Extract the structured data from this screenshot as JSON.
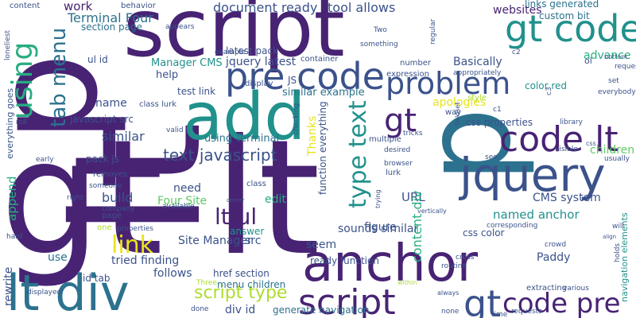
{
  "word_cloud": {
    "background": "#ffffff",
    "palette": {
      "dark_purple": "#482374",
      "indigo": "#3b528b",
      "blue": "#2c728e",
      "teal": "#21918c",
      "green": "#27ad81",
      "light_green": "#5ec962",
      "lime": "#addc30",
      "yellow": "#e8e418"
    },
    "words": [
      {
        "text": "gt lt",
        "color": "#482374"
      },
      {
        "text": "lt",
        "color": "#482374"
      },
      {
        "text": "script",
        "color": "#482374"
      },
      {
        "text": "p",
        "color": "#482374"
      },
      {
        "text": "p",
        "color": "#2c728e"
      },
      {
        "text": "add",
        "color": "#21918c"
      },
      {
        "text": "jquery",
        "color": "#3b528b"
      },
      {
        "text": "anchor",
        "color": "#482374"
      },
      {
        "text": "lt div",
        "color": "#2c728e"
      },
      {
        "text": "gt code",
        "color": "#21918c"
      },
      {
        "text": "pre code",
        "color": "#3b528b"
      },
      {
        "text": "code lt",
        "color": "#482374"
      },
      {
        "text": "problem",
        "color": "#3b528b"
      },
      {
        "text": "code pre",
        "color": "#482374"
      },
      {
        "text": "gt",
        "color": "#482374"
      },
      {
        "text": "script",
        "color": "#482374"
      },
      {
        "text": "gt",
        "color": "#3b528b"
      },
      {
        "text": "using",
        "color": "#27ad81"
      },
      {
        "text": "tab menu",
        "color": "#2c728e"
      },
      {
        "text": "type text",
        "color": "#21918c"
      },
      {
        "text": "lt ul",
        "color": "#482374"
      },
      {
        "text": "link",
        "color": "#e8e418"
      },
      {
        "text": "script type",
        "color": "#addc30"
      },
      {
        "text": "text javascript",
        "color": "#3b528b"
      },
      {
        "text": "document ready",
        "color": "#3b528b"
      },
      {
        "text": "tool allows",
        "color": "#3b528b"
      },
      {
        "text": "work",
        "color": "#482374"
      },
      {
        "text": "Terminal Four",
        "color": "#2c728e"
      },
      {
        "text": "websites",
        "color": "#482374"
      },
      {
        "text": "links generated",
        "color": "#2c728e"
      },
      {
        "text": "custom bit",
        "color": "#2c728e"
      },
      {
        "text": "latest pack",
        "color": "#3b528b"
      },
      {
        "text": "jquery latest",
        "color": "#3b528b"
      },
      {
        "text": "section page",
        "color": "#2c728e"
      },
      {
        "text": "ul id",
        "color": "#3b528b"
      },
      {
        "text": "Manager CMS",
        "color": "#21918c"
      },
      {
        "text": "help",
        "color": "#3b528b"
      },
      {
        "text": "test link",
        "color": "#3b528b"
      },
      {
        "text": "Basically",
        "color": "#3b528b"
      },
      {
        "text": "advance",
        "color": "#27ad81"
      },
      {
        "text": "color red",
        "color": "#21918c"
      },
      {
        "text": "similar example",
        "color": "#2c728e"
      },
      {
        "text": "apologies",
        "color": "#e8e418"
      },
      {
        "text": "name",
        "color": "#3b528b"
      },
      {
        "text": "javascript src",
        "color": "#3b528b"
      },
      {
        "text": "similar",
        "color": "#3b528b"
      },
      {
        "text": "using Terminal",
        "color": "#2c728e"
      },
      {
        "text": "css properties",
        "color": "#3b528b"
      },
      {
        "text": "children",
        "color": "#5ec962"
      },
      {
        "text": "pack js",
        "color": "#3b528b"
      },
      {
        "text": "need",
        "color": "#3b528b"
      },
      {
        "text": "Four Site",
        "color": "#5ec962"
      },
      {
        "text": "build",
        "color": "#3b528b"
      },
      {
        "text": "append",
        "color": "#27ad81"
      },
      {
        "text": "use",
        "color": "#2c728e"
      },
      {
        "text": "edit",
        "color": "#27ad81"
      },
      {
        "text": "URL",
        "color": "#3b528b"
      },
      {
        "text": "content div",
        "color": "#27ad81"
      },
      {
        "text": "CMS system",
        "color": "#3b528b"
      },
      {
        "text": "named anchor",
        "color": "#21918c"
      },
      {
        "text": "Site Manager",
        "color": "#3b528b"
      },
      {
        "text": "src",
        "color": "#3b528b"
      },
      {
        "text": "answer",
        "color": "#21918c"
      },
      {
        "text": "sounds similar",
        "color": "#3b528b"
      },
      {
        "text": "tried finding",
        "color": "#3b528b"
      },
      {
        "text": "css color",
        "color": "#3b528b"
      },
      {
        "text": "seem",
        "color": "#3b528b"
      },
      {
        "text": "figure",
        "color": "#3b528b"
      },
      {
        "text": "Paddy",
        "color": "#3b528b"
      },
      {
        "text": "follows",
        "color": "#3b528b"
      },
      {
        "text": "href section",
        "color": "#3b528b"
      },
      {
        "text": "menu children",
        "color": "#2c728e"
      },
      {
        "text": "id tab",
        "color": "#3b528b"
      },
      {
        "text": "rewrite",
        "color": "#3b528b"
      },
      {
        "text": "div id",
        "color": "#3b528b"
      },
      {
        "text": "generate navigation",
        "color": "#2c728e"
      },
      {
        "text": "ready function",
        "color": "#3b528b"
      },
      {
        "text": "function everything",
        "color": "#3b528b"
      },
      {
        "text": "Thanks",
        "color": "#e8e418"
      },
      {
        "text": "navigation elements",
        "color": "#21918c"
      },
      {
        "text": "everything goes",
        "color": "#3b528b"
      },
      {
        "text": "JS",
        "color": "#3b528b"
      },
      {
        "text": "class lurk",
        "color": "#3b528b"
      },
      {
        "text": "class",
        "color": "#3b528b"
      },
      {
        "text": "lurk",
        "color": "#3b528b"
      },
      {
        "text": "display",
        "color": "#3b528b"
      },
      {
        "text": "expression",
        "color": "#3b528b"
      },
      {
        "text": "style",
        "color": "#addc30"
      },
      {
        "text": "content",
        "color": "#3b528b"
      },
      {
        "text": "behavior",
        "color": "#3b528b"
      },
      {
        "text": "appears",
        "color": "#3b528b"
      },
      {
        "text": "something",
        "color": "#3b528b"
      },
      {
        "text": "container",
        "color": "#3b528b"
      },
      {
        "text": "number",
        "color": "#3b528b"
      },
      {
        "text": "example",
        "color": "#3b528b"
      },
      {
        "text": "appropriately",
        "color": "#3b528b"
      },
      {
        "text": "regular",
        "color": "#3b528b"
      },
      {
        "text": "Two",
        "color": "#3b528b"
      },
      {
        "text": "c2",
        "color": "#3b528b"
      },
      {
        "text": "c1",
        "color": "#3b528b"
      },
      {
        "text": "c3",
        "color": "#3b528b"
      },
      {
        "text": "ol",
        "color": "#3b528b"
      },
      {
        "text": "bottom",
        "color": "#3b528b"
      },
      {
        "text": "requesting",
        "color": "#3b528b"
      },
      {
        "text": "set",
        "color": "#3b528b"
      },
      {
        "text": "everybody",
        "color": "#3b528b"
      },
      {
        "text": "way",
        "color": "#3b528b"
      },
      {
        "text": "fieldset",
        "color": "#3b528b"
      },
      {
        "text": "library",
        "color": "#3b528b"
      },
      {
        "text": "tricks",
        "color": "#3b528b"
      },
      {
        "text": "css",
        "color": "#3b528b"
      },
      {
        "text": "visible",
        "color": "#3b528b"
      },
      {
        "text": "usually",
        "color": "#3b528b"
      },
      {
        "text": "see",
        "color": "#3b528b"
      },
      {
        "text": "checking",
        "color": "#3b528b"
      },
      {
        "text": "multiple",
        "color": "#3b528b"
      },
      {
        "text": "desired",
        "color": "#3b528b"
      },
      {
        "text": "browser",
        "color": "#3b528b"
      },
      {
        "text": "trying",
        "color": "#3b528b"
      },
      {
        "text": "valid",
        "color": "#3b528b"
      },
      {
        "text": "roll",
        "color": "#3b528b"
      },
      {
        "text": "early",
        "color": "#3b528b"
      },
      {
        "text": "removes",
        "color": "#3b528b"
      },
      {
        "text": "someone",
        "color": "#3b528b"
      },
      {
        "text": "right",
        "color": "#3b528b"
      },
      {
        "text": "company",
        "color": "#3b528b"
      },
      {
        "text": "page",
        "color": "#3b528b"
      },
      {
        "text": "available",
        "color": "#3b528b"
      },
      {
        "text": "center",
        "color": "#3b528b"
      },
      {
        "text": "hard",
        "color": "#3b528b"
      },
      {
        "text": "one",
        "color": "#addc30"
      },
      {
        "text": "properties",
        "color": "#3b528b"
      },
      {
        "text": "displayed",
        "color": "#3b528b"
      },
      {
        "text": "Three",
        "color": "#addc30"
      },
      {
        "text": "done",
        "color": "#3b528b"
      },
      {
        "text": "within",
        "color": "#addc30"
      },
      {
        "text": "always",
        "color": "#3b528b"
      },
      {
        "text": "none",
        "color": "#3b528b"
      },
      {
        "text": "time",
        "color": "#3b528b"
      },
      {
        "text": "requests",
        "color": "#3b528b"
      },
      {
        "text": "extracting",
        "color": "#3b528b"
      },
      {
        "text": "various",
        "color": "#3b528b"
      },
      {
        "text": "crowd",
        "color": "#3b528b"
      },
      {
        "text": "holds",
        "color": "#3b528b"
      },
      {
        "text": "will",
        "color": "#3b528b"
      },
      {
        "text": "align",
        "color": "#3b528b"
      },
      {
        "text": "corresponding",
        "color": "#3b528b"
      },
      {
        "text": "routine",
        "color": "#3b528b"
      },
      {
        "text": "cross",
        "color": "#3b528b"
      },
      {
        "text": "vertically",
        "color": "#3b528b"
      },
      {
        "text": "loneliest",
        "color": "#3b528b"
      }
    ]
  }
}
